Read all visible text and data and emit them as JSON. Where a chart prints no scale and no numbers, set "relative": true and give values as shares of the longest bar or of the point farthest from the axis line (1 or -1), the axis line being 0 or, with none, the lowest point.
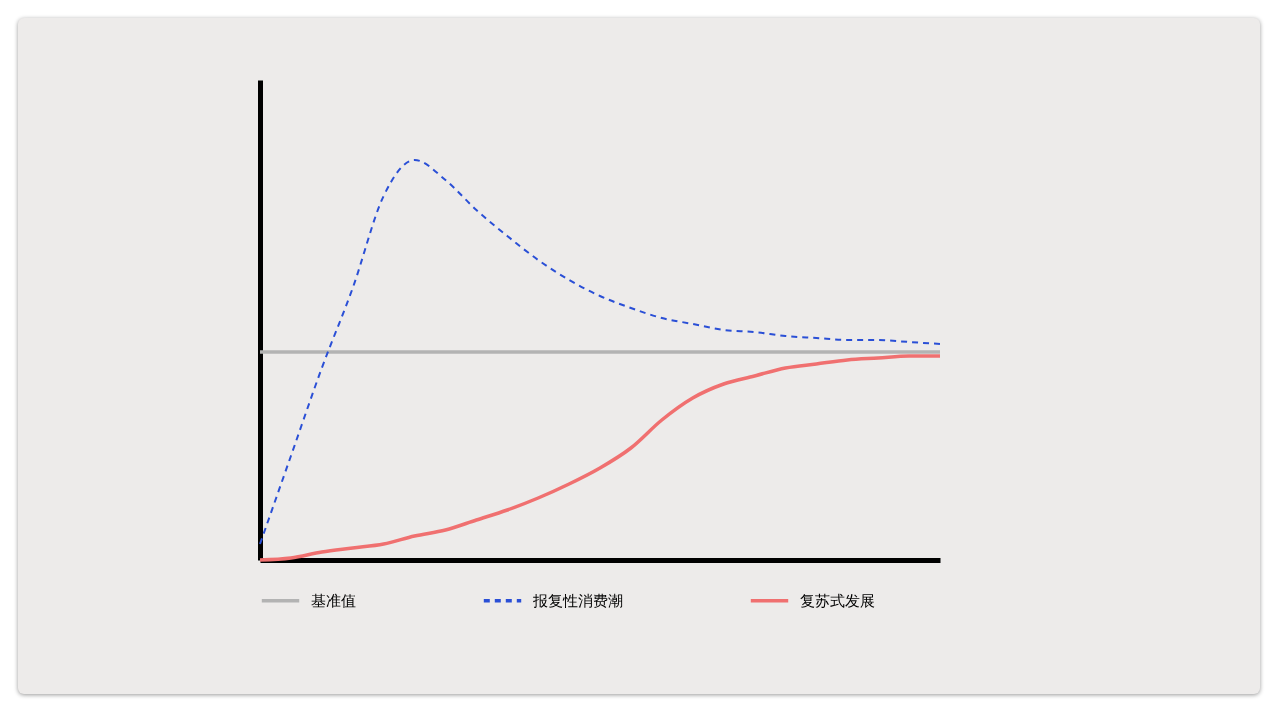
{
  "chart_data": {
    "type": "line",
    "relative": true,
    "legend": "bottom",
    "grid": false,
    "marker": "none",
    "categories": [
      null,
      null,
      null,
      null,
      null,
      null,
      null,
      null,
      null,
      null,
      null,
      null,
      null,
      null,
      null,
      null,
      null,
      null,
      null,
      null,
      null,
      null,
      null
    ],
    "series": [
      {
        "name": "基准值",
        "color": "#b3b3b3",
        "line_style": "solid",
        "values": [
          0.52,
          0.52,
          0.52,
          0.52,
          0.52,
          0.52,
          0.52,
          0.52,
          0.52,
          0.52,
          0.52,
          0.52,
          0.52,
          0.52,
          0.52,
          0.52,
          0.52,
          0.52,
          0.52,
          0.52,
          0.52,
          0.52,
          0.52
        ]
      },
      {
        "name": "报复性消费潮",
        "color": "#2a4fd6",
        "line_style": "dashed",
        "values": [
          0.04,
          0.26,
          0.48,
          0.68,
          0.91,
          1.0,
          0.95,
          0.875,
          0.81,
          0.75,
          0.7,
          0.66,
          0.63,
          0.605,
          0.59,
          0.575,
          0.57,
          0.56,
          0.555,
          0.55,
          0.55,
          0.545,
          0.54
        ]
      },
      {
        "name": "复苏式发展",
        "color": "#f07070",
        "line_style": "solid",
        "values": [
          0,
          0.005,
          0.02,
          0.03,
          0.04,
          0.06,
          0.075,
          0.1,
          0.125,
          0.155,
          0.19,
          0.23,
          0.28,
          0.35,
          0.405,
          0.44,
          0.46,
          0.48,
          0.49,
          0.5,
          0.505,
          0.51,
          0.51
        ]
      }
    ]
  }
}
